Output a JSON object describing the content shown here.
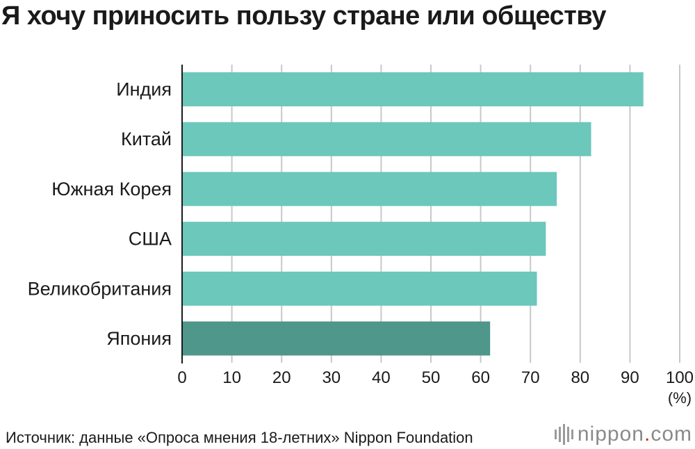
{
  "title": "Я хочу приносить пользу стране или обществу",
  "source": "Источник: данные «Опроса мнения 18-летних» Nippon Foundation",
  "logo": {
    "name": "nippon",
    "dot": ".",
    "suffix": "com"
  },
  "chart_data": {
    "type": "bar",
    "orientation": "horizontal",
    "title": "Я хочу приносить пользу стране или обществу",
    "categories": [
      "Индия",
      "Китай",
      "Южная Корея",
      "США",
      "Великобритания",
      "Япония"
    ],
    "values": [
      92.7,
      82.2,
      75.3,
      73.1,
      71.3,
      61.9
    ],
    "highlight": "Япония",
    "colors": {
      "default": "#6cc8bb",
      "highlight": "#4e978a",
      "grid": "#c8c8c8",
      "axis": "#1a1a1a"
    },
    "xlim": [
      0,
      100
    ],
    "xticks": [
      "0",
      "10",
      "20",
      "30",
      "40",
      "50",
      "60",
      "70",
      "80",
      "90",
      "100"
    ],
    "unit": "(%)",
    "grid": true
  }
}
